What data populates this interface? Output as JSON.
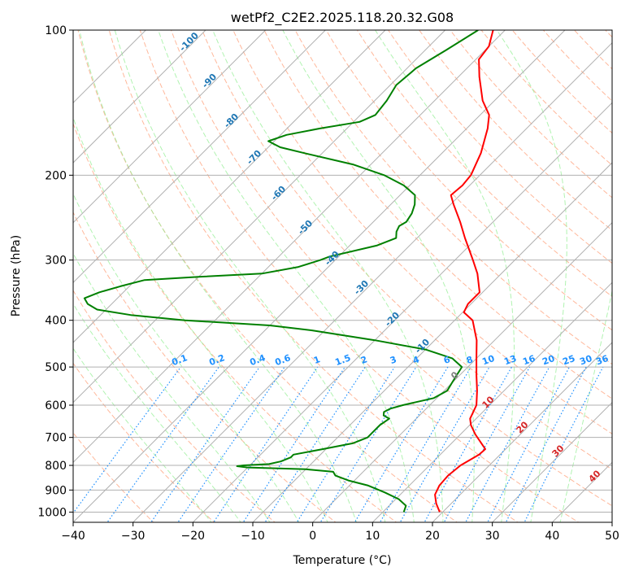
{
  "chart_data": {
    "type": "line",
    "title": "wetPf2_C2E2.2025.118.20.32.G08",
    "xlabel": "Temperature (°C)",
    "ylabel": "Pressure (hPa)",
    "xlim": [
      -40,
      50
    ],
    "ylim": [
      1050,
      100
    ],
    "y_scale": "log",
    "skew": true,
    "grid": true,
    "x_ticks": [
      -40,
      -30,
      -20,
      -10,
      0,
      10,
      20,
      30,
      40,
      50
    ],
    "y_ticks": [
      1000,
      900,
      800,
      700,
      600,
      500,
      400,
      300,
      200,
      100
    ],
    "series": [
      {
        "color": "#ff0000",
        "points": [
          {
            "p": 1000,
            "t": 19.5
          },
          {
            "p": 960,
            "t": 17.5
          },
          {
            "p": 920,
            "t": 15.8
          },
          {
            "p": 880,
            "t": 15.0
          },
          {
            "p": 840,
            "t": 14.8
          },
          {
            "p": 800,
            "t": 15.2
          },
          {
            "p": 760,
            "t": 16.5
          },
          {
            "p": 740,
            "t": 16.6
          },
          {
            "p": 720,
            "t": 15.0
          },
          {
            "p": 690,
            "t": 12.5
          },
          {
            "p": 660,
            "t": 10.2
          },
          {
            "p": 640,
            "t": 9.0
          },
          {
            "p": 600,
            "t": 7.8
          },
          {
            "p": 560,
            "t": 5.5
          },
          {
            "p": 520,
            "t": 2.8
          },
          {
            "p": 480,
            "t": 0.0
          },
          {
            "p": 440,
            "t": -3.0
          },
          {
            "p": 400,
            "t": -7.0
          },
          {
            "p": 385,
            "t": -9.8
          },
          {
            "p": 370,
            "t": -10.5
          },
          {
            "p": 350,
            "t": -10.5
          },
          {
            "p": 320,
            "t": -14.0
          },
          {
            "p": 300,
            "t": -17.0
          },
          {
            "p": 270,
            "t": -22.0
          },
          {
            "p": 250,
            "t": -25.5
          },
          {
            "p": 230,
            "t": -29.5
          },
          {
            "p": 220,
            "t": -31.5
          },
          {
            "p": 210,
            "t": -31.2
          },
          {
            "p": 200,
            "t": -31.5
          },
          {
            "p": 180,
            "t": -33.5
          },
          {
            "p": 160,
            "t": -36.5
          },
          {
            "p": 150,
            "t": -38.5
          },
          {
            "p": 140,
            "t": -42.0
          },
          {
            "p": 125,
            "t": -46.5
          },
          {
            "p": 115,
            "t": -49.5
          },
          {
            "p": 108,
            "t": -50.0
          },
          {
            "p": 100,
            "t": -52.0
          }
        ]
      },
      {
        "color": "#008000",
        "points": [
          {
            "p": 1000,
            "t": 13.5
          },
          {
            "p": 970,
            "t": 12.8
          },
          {
            "p": 940,
            "t": 10.5
          },
          {
            "p": 910,
            "t": 7.0
          },
          {
            "p": 880,
            "t": 3.0
          },
          {
            "p": 860,
            "t": -1.0
          },
          {
            "p": 840,
            "t": -4.0
          },
          {
            "p": 825,
            "t": -5.0
          },
          {
            "p": 815,
            "t": -10.0
          },
          {
            "p": 808,
            "t": -20.0
          },
          {
            "p": 803,
            "t": -22.0
          },
          {
            "p": 800,
            "t": -21.0
          },
          {
            "p": 795,
            "t": -17.0
          },
          {
            "p": 785,
            "t": -15.5
          },
          {
            "p": 770,
            "t": -14.5
          },
          {
            "p": 760,
            "t": -14.5
          },
          {
            "p": 740,
            "t": -10.5
          },
          {
            "p": 720,
            "t": -6.5
          },
          {
            "p": 700,
            "t": -5.0
          },
          {
            "p": 680,
            "t": -5.0
          },
          {
            "p": 660,
            "t": -5.0
          },
          {
            "p": 640,
            "t": -4.5
          },
          {
            "p": 630,
            "t": -6.0
          },
          {
            "p": 620,
            "t": -6.5
          },
          {
            "p": 610,
            "t": -6.0
          },
          {
            "p": 600,
            "t": -4.5
          },
          {
            "p": 580,
            "t": -0.5
          },
          {
            "p": 560,
            "t": 0.5
          },
          {
            "p": 540,
            "t": 0.0
          },
          {
            "p": 520,
            "t": -0.5
          },
          {
            "p": 500,
            "t": -1.0
          },
          {
            "p": 480,
            "t": -4.0
          },
          {
            "p": 460,
            "t": -10.0
          },
          {
            "p": 440,
            "t": -20.0
          },
          {
            "p": 420,
            "t": -32.0
          },
          {
            "p": 410,
            "t": -40.0
          },
          {
            "p": 400,
            "t": -55.0
          },
          {
            "p": 390,
            "t": -65.0
          },
          {
            "p": 380,
            "t": -71.5
          },
          {
            "p": 370,
            "t": -74.0
          },
          {
            "p": 360,
            "t": -75.5
          },
          {
            "p": 350,
            "t": -74.0
          },
          {
            "p": 340,
            "t": -71.5
          },
          {
            "p": 330,
            "t": -68.5
          },
          {
            "p": 325,
            "t": -60.0
          },
          {
            "p": 320,
            "t": -50.0
          },
          {
            "p": 310,
            "t": -45.0
          },
          {
            "p": 300,
            "t": -42.5
          },
          {
            "p": 295,
            "t": -41.5
          },
          {
            "p": 280,
            "t": -35.5
          },
          {
            "p": 270,
            "t": -33.5
          },
          {
            "p": 262,
            "t": -34.5
          },
          {
            "p": 255,
            "t": -35.0
          },
          {
            "p": 250,
            "t": -34.5
          },
          {
            "p": 240,
            "t": -35.0
          },
          {
            "p": 230,
            "t": -36.0
          },
          {
            "p": 220,
            "t": -37.5
          },
          {
            "p": 210,
            "t": -41.0
          },
          {
            "p": 200,
            "t": -46.0
          },
          {
            "p": 190,
            "t": -53.0
          },
          {
            "p": 180,
            "t": -63.0
          },
          {
            "p": 175,
            "t": -68.0
          },
          {
            "p": 170,
            "t": -71.0
          },
          {
            "p": 165,
            "t": -69.0
          },
          {
            "p": 160,
            "t": -64.5
          },
          {
            "p": 155,
            "t": -59.0
          },
          {
            "p": 150,
            "t": -57.5
          },
          {
            "p": 140,
            "t": -58.0
          },
          {
            "p": 130,
            "t": -59.0
          },
          {
            "p": 120,
            "t": -58.5
          },
          {
            "p": 110,
            "t": -56.5
          },
          {
            "p": 100,
            "t": -54.5
          }
        ]
      }
    ],
    "isotherm_labels": [
      {
        "text": "-100",
        "t": -100
      },
      {
        "text": "-90",
        "t": -90
      },
      {
        "text": "-80",
        "t": -80
      },
      {
        "text": "-70",
        "t": -70
      },
      {
        "text": "-60",
        "t": -60
      },
      {
        "text": "-50",
        "t": -50
      },
      {
        "text": "-40",
        "t": -40
      },
      {
        "text": "-30",
        "t": -30
      },
      {
        "text": "-20",
        "t": -20
      },
      {
        "text": "-10",
        "t": -10
      },
      {
        "text": "0",
        "t": 0
      },
      {
        "text": "10",
        "t": 10
      },
      {
        "text": "20",
        "t": 20
      },
      {
        "text": "30",
        "t": 30
      },
      {
        "text": "40",
        "t": 40
      }
    ],
    "mixing_ratio_labels": [
      "0.1",
      "0.2",
      "0.4",
      "0.6",
      "1",
      "1.5",
      "2",
      "3",
      "4",
      "6",
      "8",
      "10",
      "13",
      "16",
      "20",
      "25",
      "30",
      "36"
    ],
    "colors": {
      "temperature": "#ff0000",
      "dewpoint": "#008000",
      "dry_adiabat": "#ffa07a",
      "moist_adiabat": "#90ee90",
      "mixing_ratio": "#1e90ff",
      "isotherm_cold": "#1f77b4",
      "isotherm_zero": "#808080",
      "isotherm_warm": "#d62728",
      "grid": "#b0b0b0"
    }
  }
}
